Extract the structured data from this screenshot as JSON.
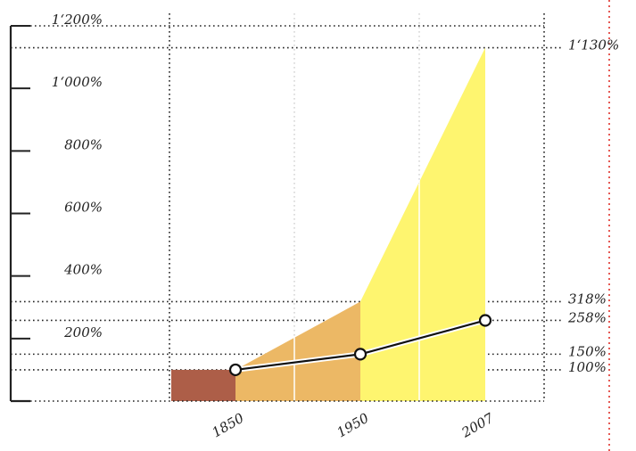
{
  "chart_data": {
    "type": "area-line",
    "categories": [
      "1850",
      "1950",
      "2007"
    ],
    "series": [
      {
        "kind": "area",
        "colors": [
          "#ad5e48",
          "#ecb865",
          "#fef56f"
        ],
        "values": [
          100,
          318,
          1130
        ]
      },
      {
        "kind": "line",
        "color": "#111111",
        "values": [
          100,
          150,
          258
        ]
      }
    ],
    "ylim": [
      0,
      1200
    ],
    "yticks": [
      {
        "value": 200,
        "label": "200%"
      },
      {
        "value": 400,
        "label": "400%"
      },
      {
        "value": 600,
        "label": "600%"
      },
      {
        "value": 800,
        "label": "800%"
      },
      {
        "value": 1000,
        "label": "1‘000%"
      },
      {
        "value": 1200,
        "label": "1‘200%"
      }
    ],
    "y2lim": [
      0,
      1200
    ],
    "y2ticks": [
      {
        "value": 100,
        "label": "100%"
      },
      {
        "value": 150,
        "label": "150%"
      },
      {
        "value": 258,
        "label": "258%"
      },
      {
        "value": 318,
        "label": "318%"
      },
      {
        "value": 1130,
        "label": "1‘130%"
      }
    ]
  }
}
